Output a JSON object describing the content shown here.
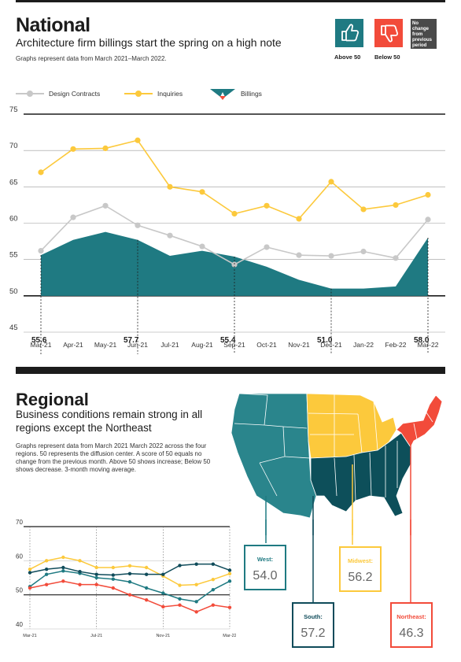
{
  "national": {
    "title": "National",
    "subtitle": "Architecture firm billings start the spring on a high note",
    "note": "Graphs represent data from March 2021–March 2022.",
    "above50_label": "Above 50",
    "below50_label": "Below 50",
    "nochange_label": "No change from previous period"
  },
  "regional": {
    "title": "Regional",
    "subtitle": "Business conditions remain strong in all regions except the Northeast",
    "note": "Graphs represent data from March 2021  March 2022 across the four regions. 50 represents the diffusion center. A score of 50 equals no change from the previous month. Above 50 shows increase; Below 50 shows decrease. 3-month moving average.",
    "regions": [
      {
        "name": "West:",
        "value": "54.0"
      },
      {
        "name": "Midwest:",
        "value": "56.2"
      },
      {
        "name": "South:",
        "value": "57.2"
      },
      {
        "name": "Northeast:",
        "value": "46.3"
      }
    ]
  },
  "colors": {
    "teal": "#1f7a82",
    "yellow": "#fcc93c",
    "grey": "#c8c8c8",
    "red": "#f24b3a",
    "navy": "#0f4b5a",
    "dark": "#1c1c1c",
    "map_west": "#2a858c",
    "map_south": "#0d4f5a",
    "map_midwest": "#fcc93c",
    "map_northeast": "#f24b3a"
  },
  "icons": [
    "thumbs-up-icon",
    "thumbs-down-icon"
  ],
  "chart_data": [
    {
      "type": "line",
      "categories": [
        "Mar-21",
        "Apr-21",
        "May-21",
        "Jun-21",
        "Jul-21",
        "Aug-21",
        "Sep-21",
        "Oct-21",
        "Nov-21",
        "Dec-21",
        "Jan-22",
        "Feb-22",
        "Mar-22"
      ],
      "series": [
        {
          "name": "Design Contracts",
          "values": [
            56.2,
            60.8,
            62.4,
            59.7,
            58.3,
            56.8,
            54.3,
            56.7,
            55.6,
            55.5,
            56.1,
            55.2,
            60.5
          ]
        },
        {
          "name": "Inquiries",
          "values": [
            67.0,
            70.2,
            70.3,
            71.4,
            65.0,
            64.3,
            61.3,
            62.4,
            60.6,
            65.7,
            61.9,
            62.5,
            63.9
          ]
        },
        {
          "name": "Billings",
          "values": [
            55.6,
            57.7,
            58.8,
            57.7,
            55.5,
            56.2,
            55.4,
            54.0,
            52.2,
            51.0,
            51.0,
            51.3,
            58.0
          ]
        }
      ],
      "labeled_values": [
        {
          "category": "Mar-21",
          "label": "55.6"
        },
        {
          "category": "Jun-21",
          "label": "57.7"
        },
        {
          "category": "Sep-21",
          "label": "55.4"
        },
        {
          "category": "Dec-21",
          "label": "51.0"
        },
        {
          "category": "Mar-22",
          "label": "58.0"
        }
      ],
      "y_ticks": [
        "75",
        "70",
        "65",
        "60",
        "55",
        "50",
        "45"
      ],
      "ylim": [
        45,
        75
      ],
      "grid": true,
      "legend": "top-left"
    },
    {
      "type": "line",
      "x_ticks": [
        "Mar-21",
        "Jul-21",
        "Nov-21",
        "Mar-22"
      ],
      "series": [
        {
          "name": "West",
          "color": "#1f7a82",
          "values": [
            52.4,
            56.0,
            57.0,
            56.3,
            55.0,
            54.6,
            53.8,
            52.0,
            50.5,
            48.8,
            48.0,
            51.5,
            54.0
          ]
        },
        {
          "name": "Midwest",
          "color": "#fcc93c",
          "values": [
            57.5,
            60.0,
            61.0,
            60.0,
            58.0,
            58.0,
            58.5,
            58.0,
            55.5,
            52.8,
            53.0,
            54.5,
            56.2
          ]
        },
        {
          "name": "South",
          "color": "#0f4b5a",
          "values": [
            56.5,
            57.5,
            58.0,
            56.8,
            56.0,
            55.8,
            56.2,
            56.0,
            56.0,
            58.6,
            59.0,
            59.0,
            57.2
          ]
        },
        {
          "name": "Northeast",
          "color": "#f24b3a",
          "values": [
            52.0,
            53.0,
            54.0,
            53.0,
            53.0,
            52.0,
            50.0,
            48.5,
            46.5,
            47.0,
            45.0,
            47.0,
            46.3
          ]
        }
      ],
      "y_ticks": [
        "70",
        "60",
        "50",
        "40"
      ],
      "ylim": [
        40,
        70
      ]
    }
  ]
}
